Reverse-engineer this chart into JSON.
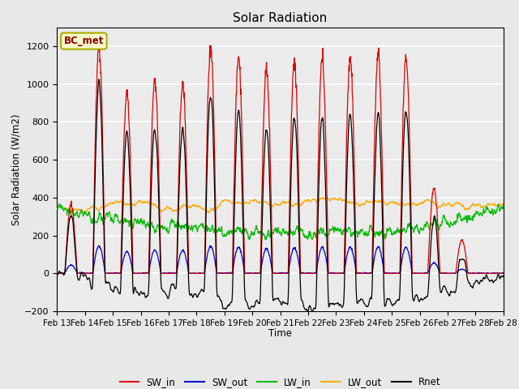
{
  "title": "Solar Radiation",
  "ylabel": "Solar Radiation (W/m2)",
  "xlabel": "Time",
  "annotation": "BC_met",
  "ylim": [
    -200,
    1300
  ],
  "yticks": [
    -200,
    0,
    200,
    400,
    600,
    800,
    1000,
    1200
  ],
  "days": [
    "Feb 13",
    "Feb 14",
    "Feb 15",
    "Feb 16",
    "Feb 17",
    "Feb 18",
    "Feb 19",
    "Feb 20",
    "Feb 21",
    "Feb 22",
    "Feb 23",
    "Feb 24",
    "Feb 25",
    "Feb 26",
    "Feb 27",
    "Feb 28"
  ],
  "n_days": 16,
  "colors": {
    "SW_in": "#dd0000",
    "SW_out": "#0000dd",
    "LW_in": "#00bb00",
    "LW_out": "#ffaa00",
    "Rnet": "#000000"
  },
  "fig_bg": "#e8e8e8",
  "plot_bg": "#ebebeb"
}
